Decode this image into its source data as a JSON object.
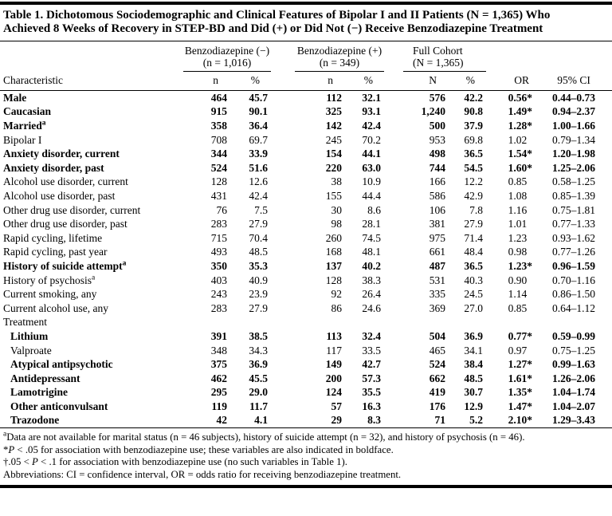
{
  "table": {
    "title": "Table 1. Dichotomous Sociodemographic and Clinical Features of Bipolar I and II Patients (N = 1,365) Who Achieved 8 Weeks of Recovery in STEP-BD and Did (+) or Did Not (−) Receive Benzodiazepine Treatment",
    "characteristic_header": "Characteristic",
    "groups": [
      {
        "line1": "Benzodiazepine (−)",
        "line2": "(n = 1,016)"
      },
      {
        "line1": "Benzodiazepine (+)",
        "line2": "(n = 349)"
      },
      {
        "line1": "Full Cohort",
        "line2": "(N = 1,365)"
      }
    ],
    "subheaders": [
      "n",
      "%",
      "n",
      "%",
      "N",
      "%"
    ],
    "or_header": "OR",
    "ci_header": "95% CI",
    "rows": [
      {
        "label": "Male",
        "bold": true,
        "cells": [
          "464",
          "45.7",
          "112",
          "32.1",
          "576",
          "42.2",
          "0.56*",
          "0.44–0.73"
        ]
      },
      {
        "label": "Caucasian",
        "bold": true,
        "cells": [
          "915",
          "90.1",
          "325",
          "93.1",
          "1,240",
          "90.8",
          "1.49*",
          "0.94–2.37"
        ]
      },
      {
        "label": "Married",
        "sup": "a",
        "bold": true,
        "cells": [
          "358",
          "36.4",
          "142",
          "42.4",
          "500",
          "37.9",
          "1.28*",
          "1.00–1.66"
        ]
      },
      {
        "label": "Bipolar I",
        "cells": [
          "708",
          "69.7",
          "245",
          "70.2",
          "953",
          "69.8",
          "1.02",
          "0.79–1.34"
        ]
      },
      {
        "label": "Anxiety disorder, current",
        "bold": true,
        "cells": [
          "344",
          "33.9",
          "154",
          "44.1",
          "498",
          "36.5",
          "1.54*",
          "1.20–1.98"
        ]
      },
      {
        "label": "Anxiety disorder, past",
        "bold": true,
        "cells": [
          "524",
          "51.6",
          "220",
          "63.0",
          "744",
          "54.5",
          "1.60*",
          "1.25–2.06"
        ]
      },
      {
        "label": "Alcohol use disorder, current",
        "cells": [
          "128",
          "12.6",
          "38",
          "10.9",
          "166",
          "12.2",
          "0.85",
          "0.58–1.25"
        ]
      },
      {
        "label": "Alcohol use disorder, past",
        "cells": [
          "431",
          "42.4",
          "155",
          "44.4",
          "586",
          "42.9",
          "1.08",
          "0.85–1.39"
        ]
      },
      {
        "label": "Other drug use disorder, current",
        "cells": [
          "76",
          "7.5",
          "30",
          "8.6",
          "106",
          "7.8",
          "1.16",
          "0.75–1.81"
        ]
      },
      {
        "label": "Other drug use disorder, past",
        "cells": [
          "283",
          "27.9",
          "98",
          "28.1",
          "381",
          "27.9",
          "1.01",
          "0.77–1.33"
        ]
      },
      {
        "label": "Rapid cycling, lifetime",
        "cells": [
          "715",
          "70.4",
          "260",
          "74.5",
          "975",
          "71.4",
          "1.23",
          "0.93–1.62"
        ]
      },
      {
        "label": "Rapid cycling, past year",
        "cells": [
          "493",
          "48.5",
          "168",
          "48.1",
          "661",
          "48.4",
          "0.98",
          "0.77–1.26"
        ]
      },
      {
        "label": "History of suicide attempt",
        "sup": "a",
        "bold": true,
        "cells": [
          "350",
          "35.3",
          "137",
          "40.2",
          "487",
          "36.5",
          "1.23*",
          "0.96–1.59"
        ]
      },
      {
        "label": "History of psychosis",
        "sup": "a",
        "cells": [
          "403",
          "40.9",
          "128",
          "38.3",
          "531",
          "40.3",
          "0.90",
          "0.70–1.16"
        ]
      },
      {
        "label": "Current smoking, any",
        "cells": [
          "243",
          "23.9",
          "92",
          "26.4",
          "335",
          "24.5",
          "1.14",
          "0.86–1.50"
        ]
      },
      {
        "label": "Current alcohol use, any",
        "cells": [
          "283",
          "27.9",
          "86",
          "24.6",
          "369",
          "27.0",
          "0.85",
          "0.64–1.12"
        ]
      },
      {
        "label": "Treatment",
        "section": true,
        "cells": [
          "",
          "",
          "",
          "",
          "",
          "",
          "",
          ""
        ]
      },
      {
        "label": "Lithium",
        "bold": true,
        "indent": true,
        "cells": [
          "391",
          "38.5",
          "113",
          "32.4",
          "504",
          "36.9",
          "0.77*",
          "0.59–0.99"
        ]
      },
      {
        "label": "Valproate",
        "indent": true,
        "cells": [
          "348",
          "34.3",
          "117",
          "33.5",
          "465",
          "34.1",
          "0.97",
          "0.75–1.25"
        ]
      },
      {
        "label": "Atypical antipsychotic",
        "bold": true,
        "indent": true,
        "cells": [
          "375",
          "36.9",
          "149",
          "42.7",
          "524",
          "38.4",
          "1.27*",
          "0.99–1.63"
        ]
      },
      {
        "label": "Antidepressant",
        "bold": true,
        "indent": true,
        "cells": [
          "462",
          "45.5",
          "200",
          "57.3",
          "662",
          "48.5",
          "1.61*",
          "1.26–2.06"
        ]
      },
      {
        "label": "Lamotrigine",
        "bold": true,
        "indent": true,
        "cells": [
          "295",
          "29.0",
          "124",
          "35.5",
          "419",
          "30.7",
          "1.35*",
          "1.04–1.74"
        ]
      },
      {
        "label": "Other anticonvulsant",
        "bold": true,
        "indent": true,
        "cells": [
          "119",
          "11.7",
          "57",
          "16.3",
          "176",
          "12.9",
          "1.47*",
          "1.04–2.07"
        ]
      },
      {
        "label": "Trazodone",
        "bold": true,
        "indent": true,
        "cells": [
          "42",
          "4.1",
          "29",
          "8.3",
          "71",
          "5.2",
          "2.10*",
          "1.29–3.43"
        ]
      }
    ],
    "footnotes": [
      {
        "parts": [
          {
            "text": "a",
            "sup": true
          },
          {
            "text": "Data are not available for marital status (n = 46 subjects), history of suicide attempt (n = 32), and history of psychosis (n = 46)."
          }
        ]
      },
      {
        "parts": [
          {
            "text": "*"
          },
          {
            "text": "P",
            "italic": true
          },
          {
            "text": " < .05 for association with benzodiazepine use; these variables are also indicated in boldface."
          }
        ]
      },
      {
        "parts": [
          {
            "text": "†.05 < "
          },
          {
            "text": "P",
            "italic": true
          },
          {
            "text": " < .1 for association with benzodiazepine use (no such variables in Table 1)."
          }
        ]
      },
      {
        "parts": [
          {
            "text": "Abbreviations: CI = confidence interval, OR = odds ratio for receiving benzodiazepine treatment."
          }
        ]
      }
    ]
  }
}
